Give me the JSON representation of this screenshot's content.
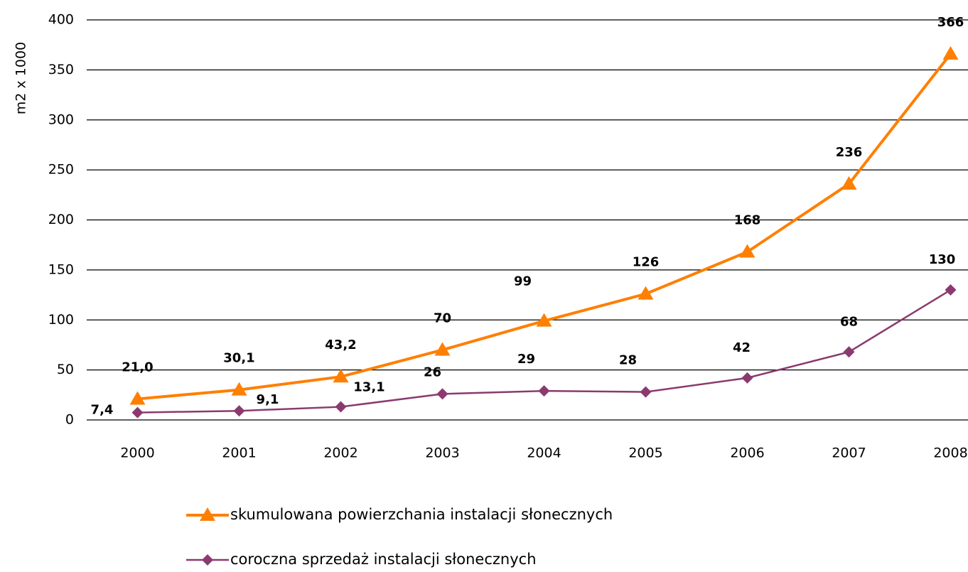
{
  "chart_data": {
    "type": "line",
    "y_label": "m2 x 1000",
    "categories": [
      "2000",
      "2001",
      "2002",
      "2003",
      "2004",
      "2005",
      "2006",
      "2007",
      "2008"
    ],
    "series": [
      {
        "name": "skumulowana powierzchania instalacji słonecznych",
        "color": "#ff7f00",
        "marker": "triangle",
        "values": [
          21.0,
          30.1,
          43.2,
          70,
          99,
          126,
          168,
          236,
          366
        ],
        "value_labels": [
          "21,0",
          "30,1",
          "43,2",
          "70",
          "99",
          "126",
          "168",
          "236",
          "366"
        ]
      },
      {
        "name": "coroczna sprzedaż instalacji słonecznych",
        "color": "#8b3a6e",
        "marker": "diamond",
        "values": [
          7.4,
          9.1,
          13.1,
          26,
          29,
          28,
          42,
          68,
          130
        ],
        "value_labels": [
          "7,4",
          "9,1",
          "13,1",
          "26",
          "29",
          "28",
          "42",
          "68",
          "130"
        ]
      }
    ],
    "ylim": [
      0,
      400
    ],
    "yticks": [
      0,
      50,
      100,
      150,
      200,
      250,
      300,
      350,
      400
    ],
    "grid": true
  }
}
